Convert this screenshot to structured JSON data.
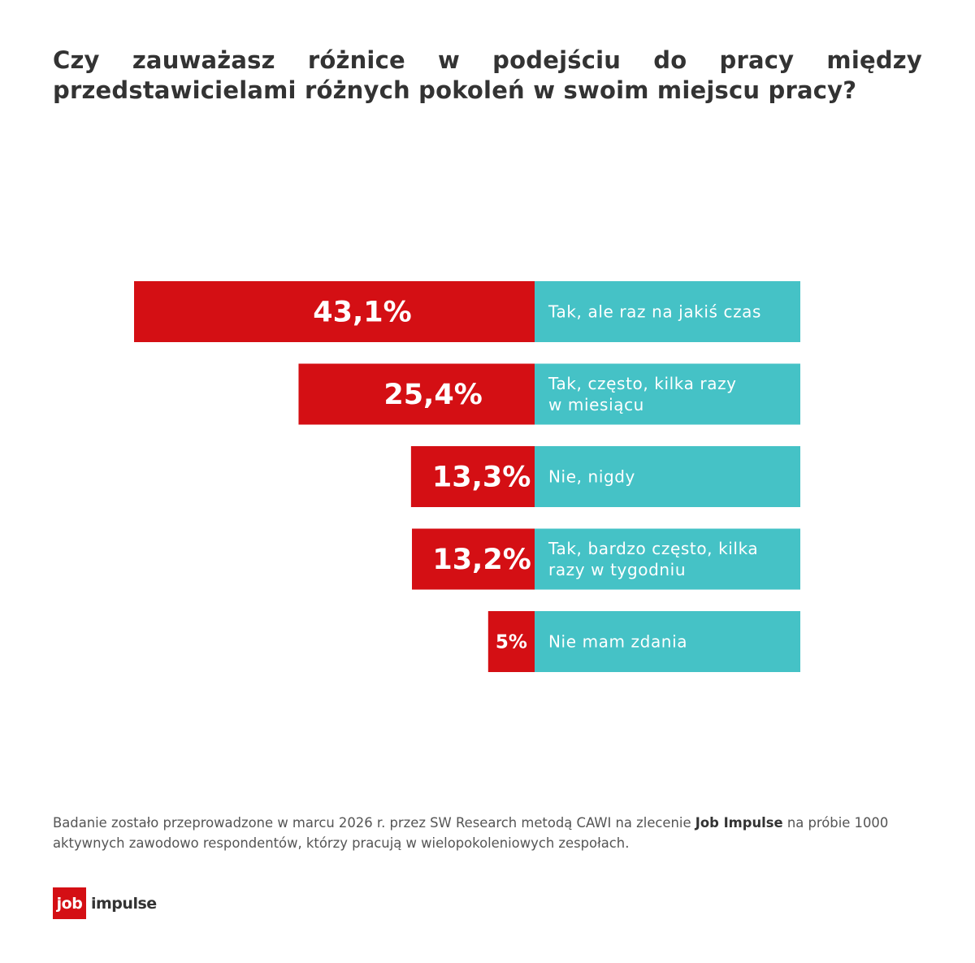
{
  "title": "Czy zauważasz różnice w podejściu do pracy między przedstawicielami różnych pokoleń w swoim miejscu pracy?",
  "colors": {
    "value_bar": "#d40f14",
    "label_bar": "#45c2c6",
    "text": "#333333"
  },
  "chart_data": {
    "type": "bar",
    "orientation": "horizontal",
    "categories": [
      "Tak, ale raz na jakiś czas",
      "Tak, często, kilka razy w miesiącu",
      "Nie, nigdy",
      "Tak, bardzo często, kilka razy w tygodniu",
      "Nie mam zdania"
    ],
    "category_lines": [
      [
        "Tak, ale raz na jakiś czas"
      ],
      [
        "Tak, często, kilka razy",
        "w miesiącu"
      ],
      [
        "Nie, nigdy"
      ],
      [
        "Tak, bardzo często, kilka",
        "razy w tygodniu"
      ],
      [
        "Nie mam zdania"
      ]
    ],
    "values": [
      43.1,
      25.4,
      13.3,
      13.2,
      5
    ],
    "value_labels": [
      "43,1%",
      "25,4%",
      "13,3%",
      "13,2%",
      "5%"
    ],
    "unit": "%",
    "xlim": [
      0,
      43.1
    ],
    "grid": false,
    "legend": "none"
  },
  "footnote": {
    "text_before": "Badanie zostało przeprowadzone w marcu 2026 r. przez SW Research metodą CAWI na zlecenie ",
    "brand": "Job Impulse",
    "text_after": " na próbie 1000 aktywnych zawodowo respondentów, którzy pracują w wielopokoleniowych zespołach."
  },
  "logo": {
    "box_text": "job",
    "text": "impulse"
  }
}
